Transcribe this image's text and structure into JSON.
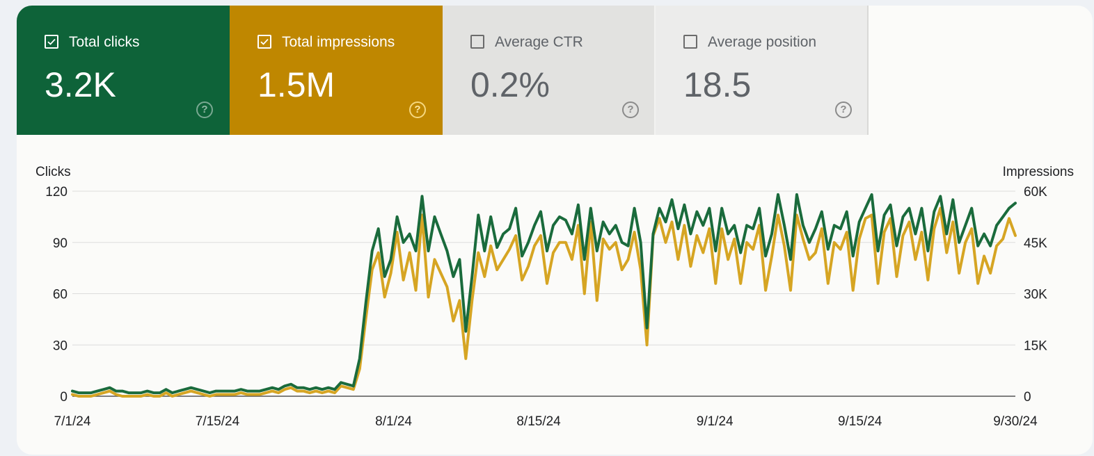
{
  "metrics": {
    "clicks": {
      "label": "Total clicks",
      "value": "3.2K",
      "checked": true,
      "color": "#0e6339"
    },
    "impressions": {
      "label": "Total impressions",
      "value": "1.5M",
      "checked": true,
      "color": "#bf8700"
    },
    "ctr": {
      "label": "Average CTR",
      "value": "0.2%",
      "checked": false
    },
    "position": {
      "label": "Average position",
      "value": "18.5",
      "checked": false
    }
  },
  "help_icon": {
    "symbol": "?",
    "icon": "help-circle-icon"
  },
  "check_icon": "checkmark-icon",
  "chart_data": {
    "type": "line",
    "grid": true,
    "legend": "none",
    "x_range": [
      "7/1/24",
      "9/30/24"
    ],
    "x_ticks": [
      "7/1/24",
      "7/15/24",
      "8/1/24",
      "8/15/24",
      "9/1/24",
      "9/15/24",
      "9/30/24"
    ],
    "y_left": {
      "label": "Clicks",
      "range": [
        0,
        120
      ],
      "ticks": [
        "0",
        "30",
        "60",
        "90",
        "120"
      ]
    },
    "y_right": {
      "label": "Impressions",
      "range": [
        0,
        60000
      ],
      "ticks": [
        "0",
        "15K",
        "30K",
        "45K",
        "60K"
      ]
    },
    "series": [
      {
        "axis": "left",
        "color": "#1a6b3c",
        "values": [
          3,
          2,
          2,
          2,
          3,
          4,
          5,
          3,
          3,
          2,
          2,
          2,
          3,
          2,
          2,
          4,
          2,
          3,
          4,
          5,
          4,
          3,
          2,
          3,
          3,
          3,
          3,
          4,
          3,
          3,
          3,
          4,
          5,
          4,
          6,
          7,
          5,
          5,
          4,
          5,
          4,
          5,
          4,
          8,
          7,
          6,
          22,
          55,
          85,
          98,
          70,
          80,
          105,
          90,
          95,
          85,
          117,
          85,
          105,
          95,
          85,
          70,
          80,
          38,
          70,
          106,
          85,
          105,
          87,
          95,
          98,
          110,
          82,
          90,
          100,
          108,
          85,
          100,
          105,
          103,
          95,
          112,
          80,
          110,
          85,
          102,
          95,
          100,
          90,
          88,
          110,
          90,
          40,
          95,
          110,
          102,
          115,
          98,
          112,
          95,
          108,
          100,
          110,
          85,
          110,
          95,
          100,
          84,
          100,
          98,
          110,
          82,
          95,
          118,
          100,
          80,
          118,
          100,
          90,
          98,
          108,
          86,
          100,
          98,
          108,
          82,
          102,
          110,
          118,
          85,
          106,
          112,
          88,
          105,
          110,
          95,
          110,
          85,
          108,
          117,
          95,
          115,
          90,
          100,
          110,
          88,
          95,
          88,
          100,
          105,
          110,
          113
        ]
      },
      {
        "axis": "right",
        "color": "#d6a523",
        "values": [
          500,
          0,
          0,
          0,
          500,
          1000,
          1500,
          500,
          0,
          0,
          0,
          0,
          500,
          0,
          0,
          1000,
          0,
          500,
          1000,
          1500,
          1000,
          500,
          0,
          500,
          500,
          500,
          500,
          1000,
          500,
          500,
          500,
          1000,
          1500,
          1000,
          2000,
          2500,
          1500,
          1500,
          1000,
          1500,
          1000,
          1500,
          1000,
          3000,
          2500,
          2000,
          8000,
          23000,
          37000,
          42000,
          29000,
          36000,
          48000,
          34000,
          42000,
          31000,
          53000,
          29000,
          40000,
          36000,
          32000,
          22000,
          28000,
          11000,
          28000,
          42000,
          35000,
          44000,
          37000,
          40000,
          43000,
          47000,
          34000,
          38000,
          44000,
          47000,
          33000,
          42000,
          45000,
          45000,
          40000,
          50000,
          30000,
          51000,
          28000,
          46000,
          43000,
          45000,
          37000,
          40000,
          48000,
          37000,
          15000,
          47000,
          52000,
          45000,
          51000,
          40000,
          50000,
          38000,
          47000,
          42000,
          49000,
          33000,
          49000,
          40000,
          46000,
          33000,
          45000,
          43000,
          50000,
          31000,
          41000,
          53000,
          44000,
          31000,
          53000,
          46000,
          40000,
          42000,
          49000,
          33000,
          45000,
          43000,
          48000,
          31000,
          46000,
          52000,
          53000,
          33000,
          48000,
          52000,
          35000,
          47000,
          51000,
          40000,
          48000,
          34000,
          49000,
          55000,
          42000,
          51000,
          36000,
          45000,
          49000,
          33000,
          41000,
          36000,
          44000,
          46000,
          52000,
          47000
        ]
      }
    ]
  }
}
